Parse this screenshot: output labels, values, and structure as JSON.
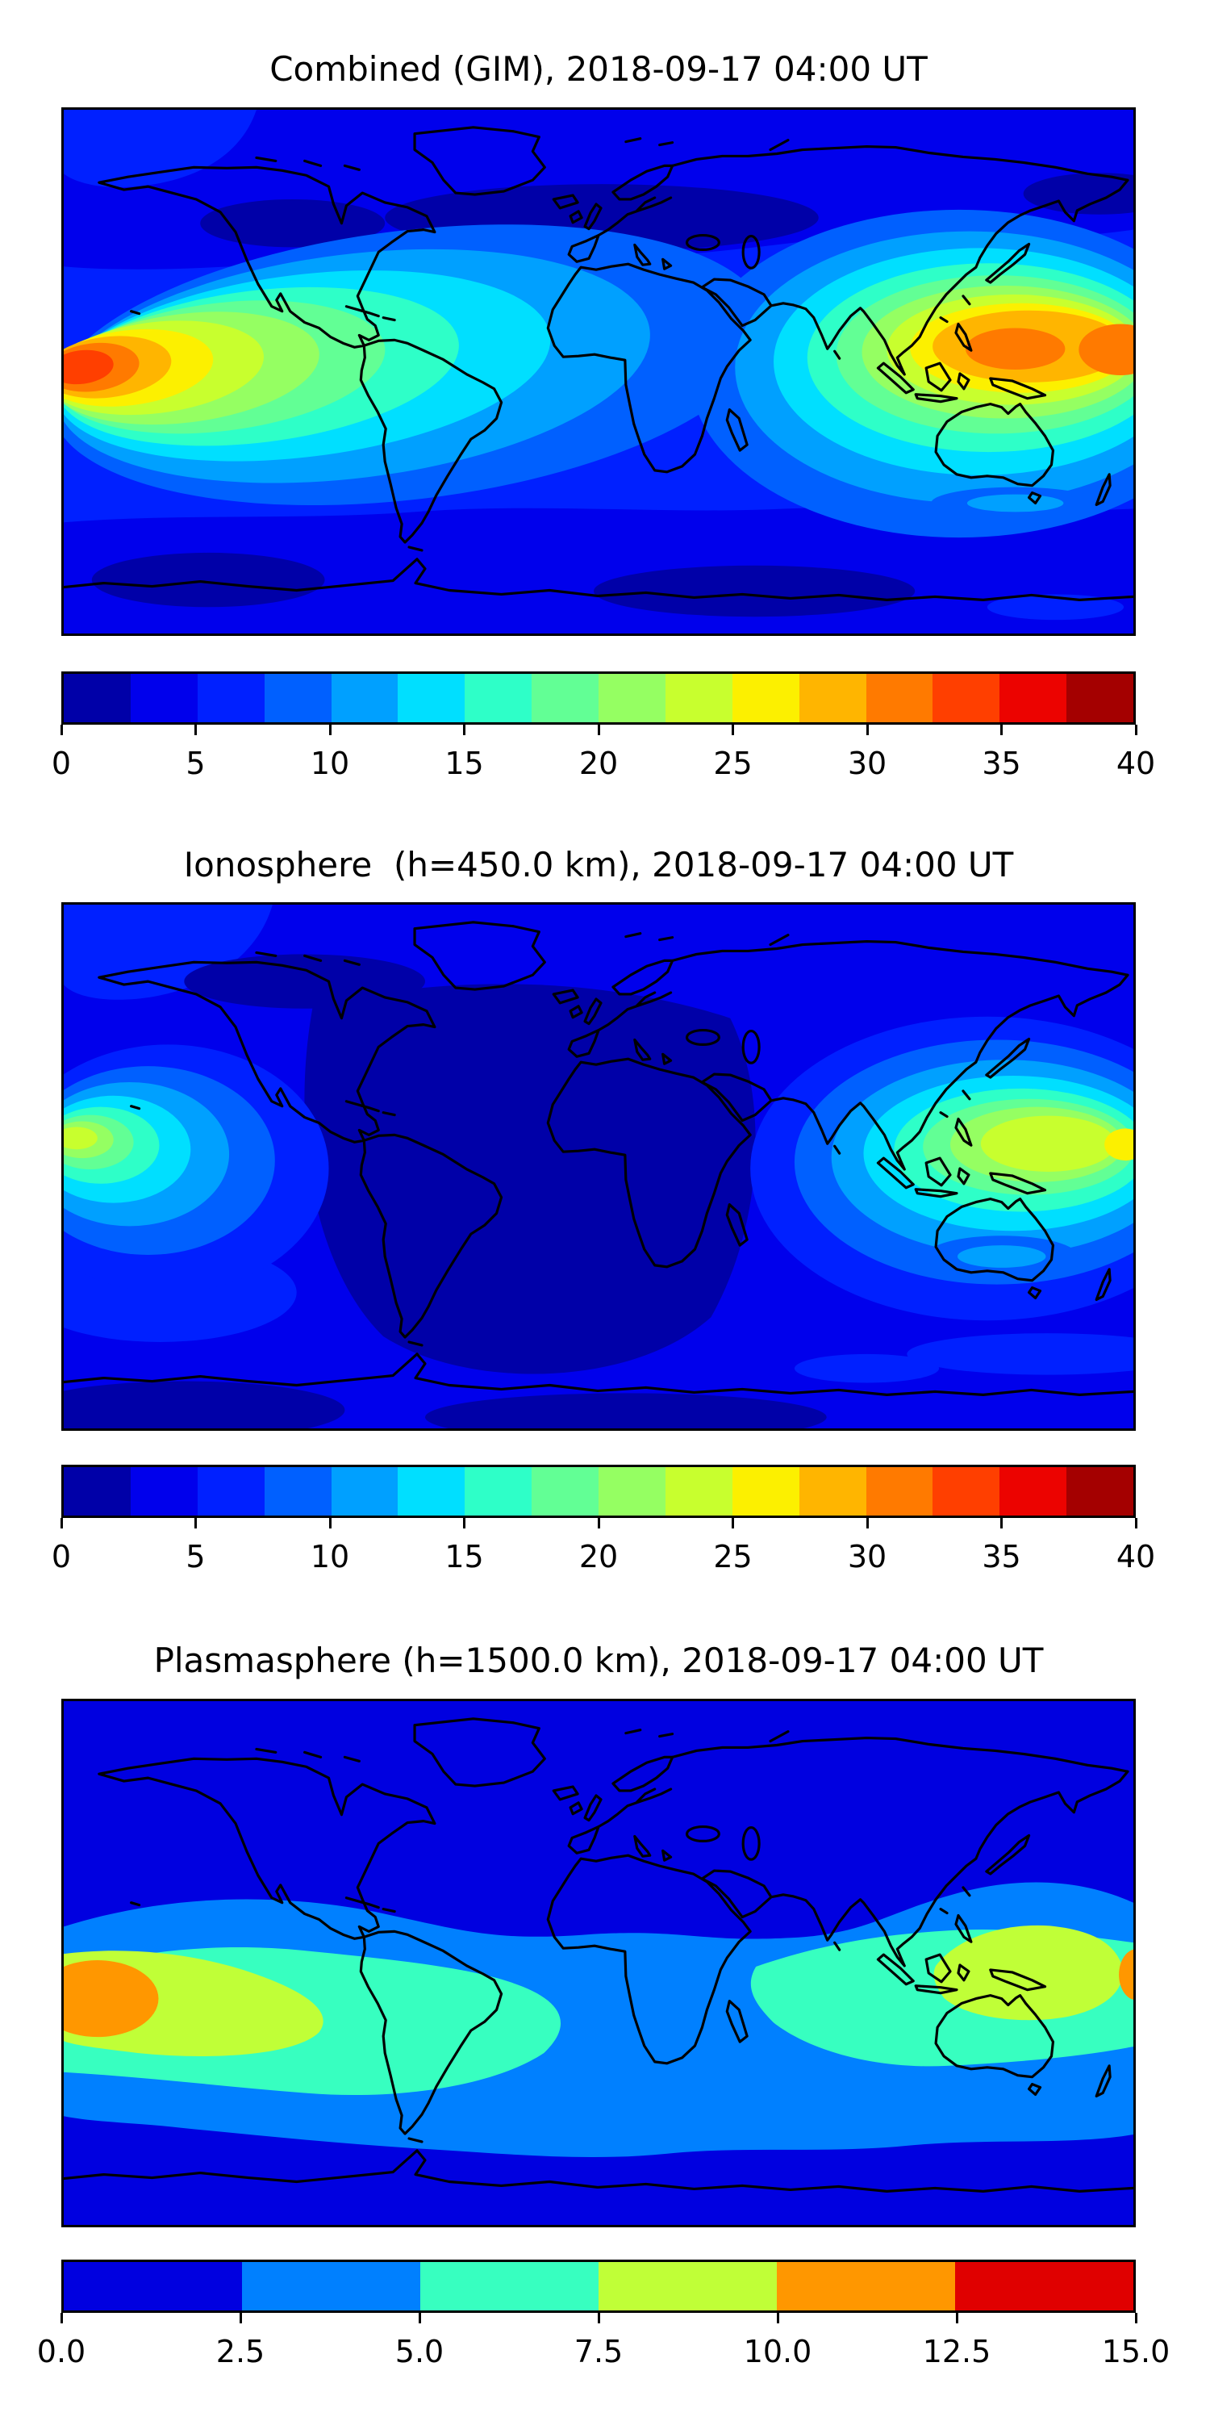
{
  "figure": {
    "background": "#ffffff"
  },
  "palettes": {
    "jet16": [
      "#0000A8",
      "#0000EC",
      "#0020FF",
      "#0060FF",
      "#00A0FF",
      "#00DFFF",
      "#2EFFC8",
      "#62FF95",
      "#95FF62",
      "#C8FF2E",
      "#FCF000",
      "#FFB500",
      "#FF7A00",
      "#FF3F00",
      "#EC0300",
      "#A40000"
    ],
    "jet6": [
      "#0000E0",
      "#0080FF",
      "#37FFC0",
      "#C0FF37",
      "#FF9700",
      "#E00000"
    ]
  },
  "panels": [
    {
      "id": "combined",
      "title": "Combined (GIM), 2018-09-17 04:00 UT",
      "colorbar": {
        "palette": "jet16",
        "min": 0,
        "max": 40,
        "tick_labels": [
          "0",
          "5",
          "10",
          "15",
          "20",
          "25",
          "30",
          "35",
          "40"
        ]
      }
    },
    {
      "id": "ionosphere",
      "title": "Ionosphere  (h=450.0 km), 2018-09-17 04:00 UT",
      "colorbar": {
        "palette": "jet16",
        "min": 0,
        "max": 40,
        "tick_labels": [
          "0",
          "5",
          "10",
          "15",
          "20",
          "25",
          "30",
          "35",
          "40"
        ]
      }
    },
    {
      "id": "plasmasphere",
      "title": "Plasmasphere (h=1500.0 km), 2018-09-17 04:00 UT",
      "colorbar": {
        "palette": "jet6",
        "min": 0,
        "max": 15,
        "tick_labels": [
          "0.0",
          "2.5",
          "5.0",
          "7.5",
          "10.0",
          "12.5",
          "15.0"
        ]
      }
    }
  ],
  "chart_data": [
    {
      "type": "heatmap",
      "subtype": "filled-contour world map with coastlines",
      "title": "Combined (GIM), 2018-09-17 04:00 UT",
      "colormap": "jet, 16 discrete levels",
      "value_range": [
        0,
        40
      ],
      "contour_level_step": 2.5,
      "colorbar_ticks": [
        0,
        5,
        10,
        15,
        20,
        25,
        30,
        35,
        40
      ],
      "map_extent": {
        "lon": [
          -180,
          180
        ],
        "lat": [
          -90,
          90
        ]
      },
      "background_field": "oceans mostly 5-7.5; bands of 2.5-5 at mid-high latitudes; 0-2.5 patches over N Atlantic/Scandinavia/Siberia, N Canada and Southern Ocean",
      "hotspots": [
        {
          "location": "south-central Pacific near 170W, 10S (left edge)",
          "peak_level": "32.5-35",
          "peak_value": 34
        },
        {
          "location": "Southeast Asia / western Pacific, 110E-180E near equator-15N",
          "peak_level": "30-32.5",
          "peak_value": 32
        }
      ]
    },
    {
      "type": "heatmap",
      "subtype": "filled-contour world map with coastlines",
      "title": "Ionosphere  (h=450.0 km), 2018-09-17 04:00 UT",
      "colormap": "jet, 16 discrete levels",
      "value_range": [
        0,
        40
      ],
      "contour_level_step": 2.5,
      "colorbar_ticks": [
        0,
        5,
        10,
        15,
        20,
        25,
        30,
        35,
        40
      ],
      "map_extent": {
        "lon": [
          -180,
          180
        ],
        "lat": [
          -90,
          90
        ]
      },
      "background_field": "mostly 2.5-5; large 0-2.5 region over Americas, Atlantic, Africa and Europe (night side) and near poles",
      "hotspots": [
        {
          "location": "south-central Pacific near 175W, 10S (left edge)",
          "peak_level": "22.5-25",
          "peak_value": 24
        },
        {
          "location": "Southeast Asia / western Pacific around Philippines to 180E",
          "peak_level": "25-27.5",
          "peak_value": 26
        }
      ]
    },
    {
      "type": "heatmap",
      "subtype": "filled-contour world map with coastlines",
      "title": "Plasmasphere (h=1500.0 km), 2018-09-17 04:00 UT",
      "colormap": "jet, 6 discrete levels",
      "value_range": [
        0,
        15
      ],
      "contour_level_step": 2.5,
      "colorbar_ticks": [
        0.0,
        2.5,
        5.0,
        7.5,
        10.0,
        12.5,
        15.0
      ],
      "map_extent": {
        "lon": [
          -180,
          180
        ],
        "lat": [
          -90,
          90
        ]
      },
      "background_field": "0-2.5 at high latitudes; 2.5-5 mid-latitude band; 5-7.5 equatorial band interrupted over Africa",
      "hotspots": [
        {
          "location": "equatorial Pacific at left edge near 175W, 10S",
          "peak_level": "10-12.5",
          "peak_value": 11
        },
        {
          "location": "Southeast Asia / Indonesia / New Guinea",
          "peak_level": "7.5-10",
          "peak_value": 9
        },
        {
          "location": "right edge near 180E, 5S (wrap of Pacific cell)",
          "peak_level": "10-12.5",
          "peak_value": 10.5
        }
      ]
    }
  ]
}
